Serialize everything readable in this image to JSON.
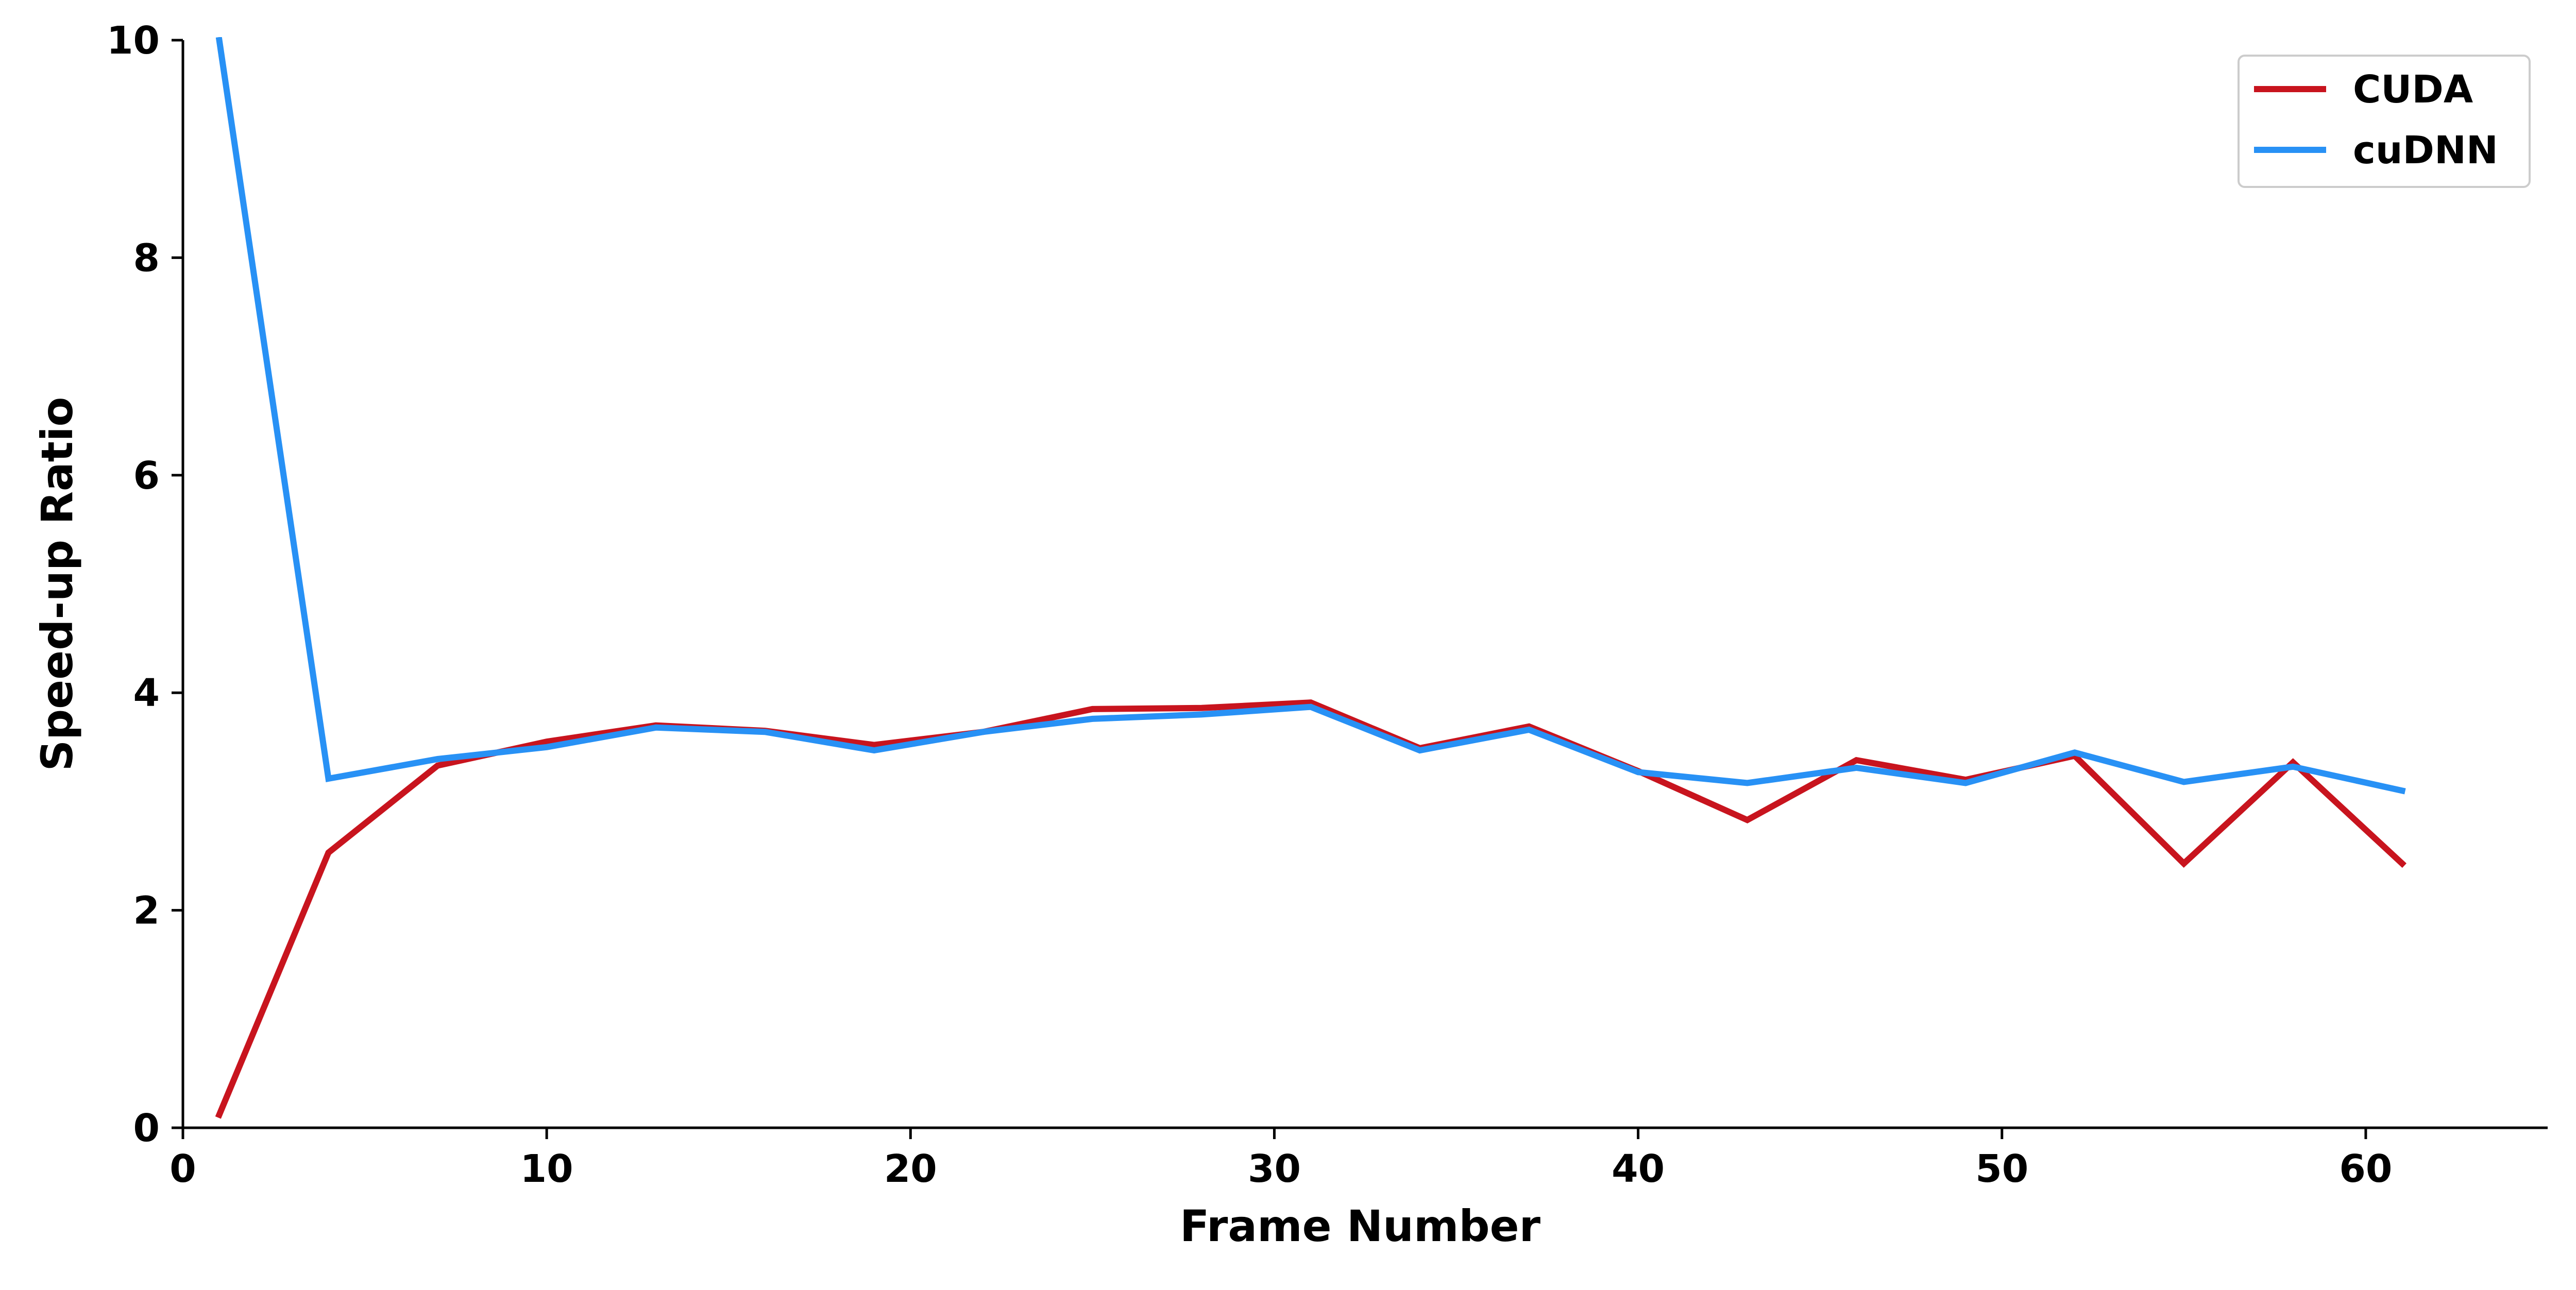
{
  "chart_data": {
    "type": "line",
    "xlabel": "Frame Number",
    "ylabel": "Speed-up Ratio",
    "xlim": [
      0,
      65
    ],
    "ylim": [
      0,
      10
    ],
    "xticks": [
      0,
      10,
      20,
      30,
      40,
      50,
      60
    ],
    "yticks": [
      0,
      2,
      4,
      6,
      8,
      10
    ],
    "grid": false,
    "legend_position": "top-right",
    "x": [
      1,
      4,
      7,
      10,
      13,
      16,
      19,
      22,
      25,
      28,
      31,
      34,
      37,
      40,
      43,
      46,
      49,
      52,
      55,
      58,
      61
    ],
    "series": [
      {
        "name": "CUDA",
        "color": "#c8141e",
        "values": [
          0.12,
          2.53,
          3.33,
          3.55,
          3.7,
          3.65,
          3.52,
          3.64,
          3.85,
          3.86,
          3.91,
          3.49,
          3.69,
          3.28,
          2.83,
          3.38,
          3.2,
          3.42,
          2.43,
          3.36,
          2.43
        ]
      },
      {
        "name": "cuDNN",
        "color": "#2891f5",
        "values": [
          10.0,
          3.21,
          3.39,
          3.5,
          3.68,
          3.64,
          3.47,
          3.64,
          3.76,
          3.8,
          3.87,
          3.47,
          3.66,
          3.27,
          3.17,
          3.31,
          3.17,
          3.45,
          3.18,
          3.32,
          3.1
        ]
      }
    ]
  }
}
